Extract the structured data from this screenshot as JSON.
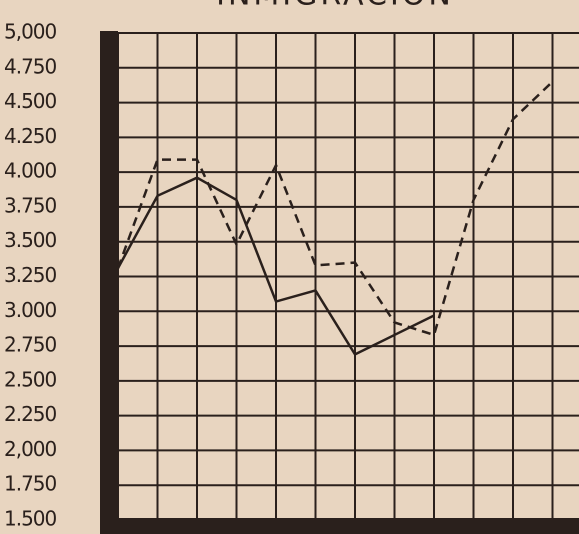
{
  "chart_data": {
    "type": "line",
    "title": "INMIGRACION",
    "categories": [
      null,
      null,
      null,
      null,
      null,
      null,
      null,
      null,
      null,
      null,
      null,
      null
    ],
    "series": [
      {
        "color": "#2a201c",
        "style": "solid",
        "values": [
          3310,
          3830,
          3960,
          3800,
          3070,
          3150,
          2690,
          2830,
          2970,
          null,
          null,
          null
        ]
      },
      {
        "color": "#2a201c",
        "style": "dashed",
        "values": [
          3310,
          4090,
          4090,
          3480,
          4050,
          3330,
          3350,
          2920,
          2830,
          3800,
          4380,
          4650
        ]
      }
    ],
    "ylim": [
      1500,
      5000
    ],
    "yticks": [
      {
        "value": 1500,
        "label": "1.500"
      },
      {
        "value": 1750,
        "label": "1.750"
      },
      {
        "value": 2000,
        "label": "2,000"
      },
      {
        "value": 2250,
        "label": "2.250"
      },
      {
        "value": 2500,
        "label": "2.500"
      },
      {
        "value": 2750,
        "label": "2.750"
      },
      {
        "value": 3000,
        "label": "3.000"
      },
      {
        "value": 3250,
        "label": "3.250"
      },
      {
        "value": 3500,
        "label": "3.500"
      },
      {
        "value": 3750,
        "label": "3.750"
      },
      {
        "value": 4000,
        "label": "4.000"
      },
      {
        "value": 4250,
        "label": "4.250"
      },
      {
        "value": 4500,
        "label": "4.500"
      },
      {
        "value": 4750,
        "label": "4.750"
      },
      {
        "value": 5000,
        "label": "5,000"
      }
    ],
    "grid": true
  }
}
